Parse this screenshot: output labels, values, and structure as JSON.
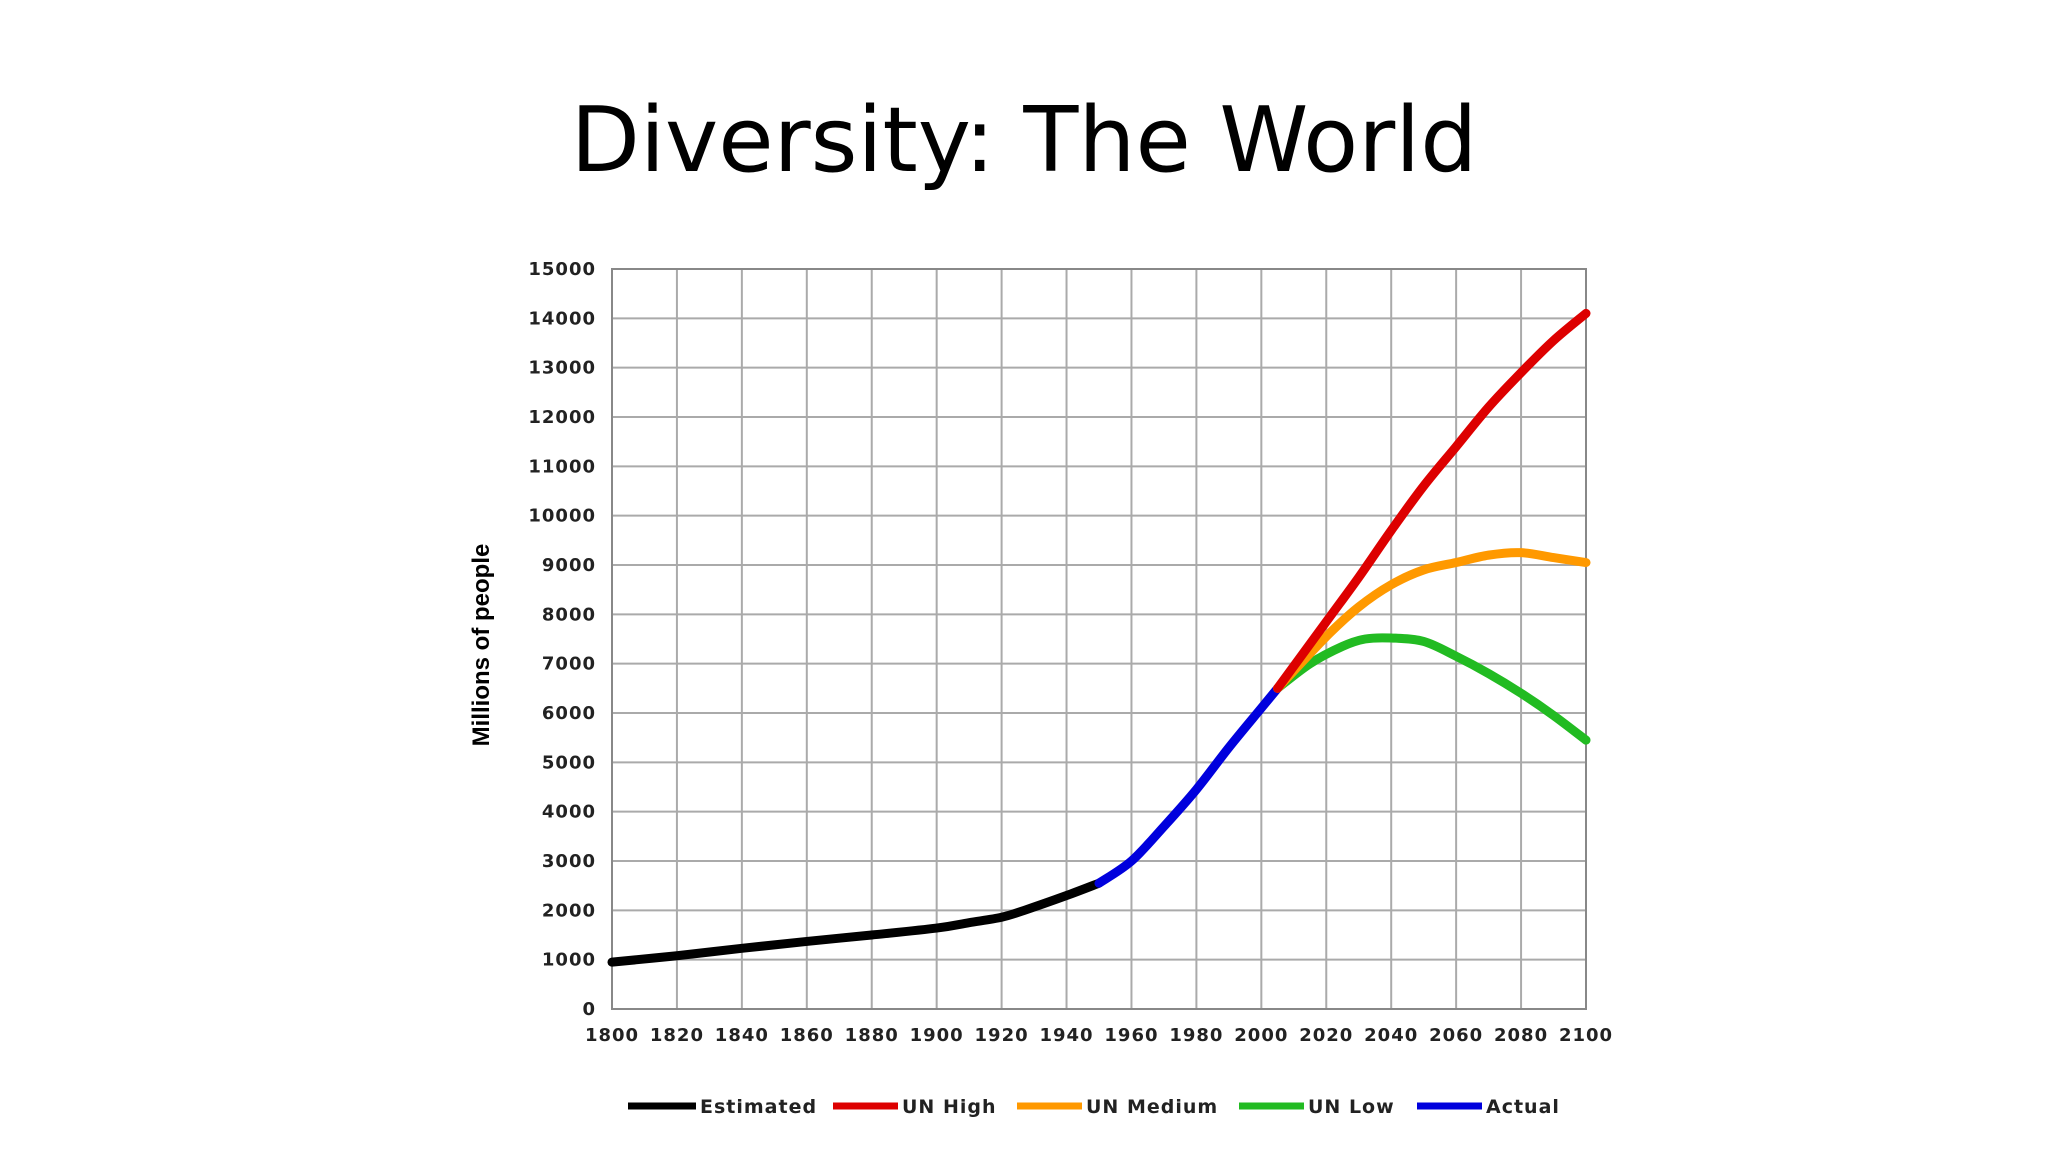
{
  "slide": {
    "title": "Diversity: The World"
  },
  "chart_data": {
    "type": "line",
    "title": "",
    "xlabel": "",
    "ylabel": "Millions of people",
    "xlim": [
      1800,
      2100
    ],
    "ylim": [
      0,
      15000
    ],
    "x_ticks": [
      1800,
      1820,
      1840,
      1860,
      1880,
      1900,
      1920,
      1940,
      1960,
      1980,
      2000,
      2020,
      2040,
      2060,
      2080,
      2100
    ],
    "y_ticks": [
      0,
      1000,
      2000,
      3000,
      4000,
      5000,
      6000,
      7000,
      8000,
      9000,
      10000,
      11000,
      12000,
      13000,
      14000,
      15000
    ],
    "grid": true,
    "legend_position": "bottom",
    "series": [
      {
        "name": "Estimated",
        "color": "#000000",
        "x": [
          1800,
          1820,
          1840,
          1860,
          1880,
          1900,
          1910,
          1920,
          1927,
          1940,
          1950
        ],
        "y": [
          950,
          1080,
          1230,
          1370,
          1500,
          1640,
          1750,
          1860,
          2000,
          2300,
          2550
        ]
      },
      {
        "name": "UN High",
        "color": "#dd0000",
        "x": [
          2005,
          2020,
          2030,
          2040,
          2050,
          2060,
          2070,
          2080,
          2090,
          2100
        ],
        "y": [
          6500,
          7850,
          8750,
          9700,
          10600,
          11400,
          12200,
          12900,
          13550,
          14100
        ]
      },
      {
        "name": "UN Medium",
        "color": "#ff9900",
        "x": [
          2005,
          2020,
          2030,
          2040,
          2050,
          2060,
          2070,
          2080,
          2090,
          2100
        ],
        "y": [
          6500,
          7550,
          8150,
          8600,
          8900,
          9050,
          9200,
          9250,
          9150,
          9050
        ]
      },
      {
        "name": "UN Low",
        "color": "#22bb22",
        "x": [
          2005,
          2015,
          2025,
          2032,
          2040,
          2050,
          2060,
          2070,
          2080,
          2090,
          2100
        ],
        "y": [
          6500,
          7000,
          7350,
          7500,
          7520,
          7450,
          7150,
          6800,
          6400,
          5950,
          5450
        ]
      },
      {
        "name": "Actual",
        "color": "#0000dd",
        "x": [
          1950,
          1960,
          1970,
          1980,
          1990,
          2000,
          2005
        ],
        "y": [
          2550,
          3000,
          3700,
          4450,
          5300,
          6100,
          6500
        ]
      }
    ]
  }
}
